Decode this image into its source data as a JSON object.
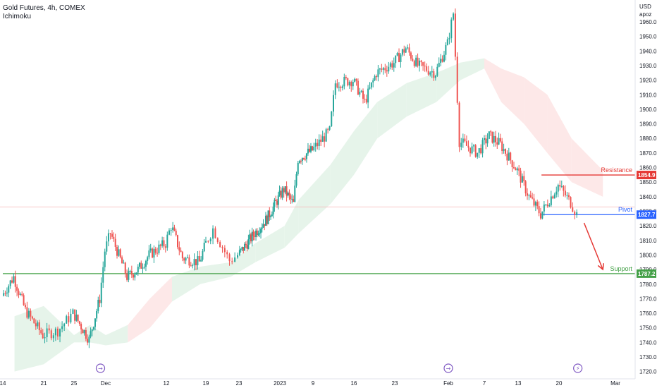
{
  "header": {
    "title": "Gold Futures, 4h, COMEX",
    "indicator": "Ichimoku",
    "currency": "USD",
    "scale_mode": "apoz"
  },
  "colors": {
    "up": "#26a69a",
    "down": "#ef5350",
    "cloud_bull": "#e6f4ea",
    "cloud_bear": "#fde8e8",
    "resistance": "#e53935",
    "pivot": "#2962ff",
    "support": "#43a047",
    "arrow": "#e53935",
    "event": "#7e57c2"
  },
  "annotations": {
    "resistance": {
      "label": "Resistance",
      "value": 1854.9,
      "tag": "1854.9"
    },
    "pivot": {
      "label": "Pivot",
      "value": 1827.7,
      "tag": "1827.7"
    },
    "support": {
      "label": "Support",
      "value": 1787.2,
      "tag": "1787.2"
    }
  },
  "chart_data": {
    "type": "candlestick",
    "title": "Gold Futures, 4h, COMEX",
    "ylim": [
      1715,
      1975
    ],
    "y_ticks": [
      1720,
      1730,
      1740,
      1750,
      1760,
      1770,
      1780,
      1790,
      1800,
      1810,
      1820,
      1830,
      1840,
      1850,
      1860,
      1870,
      1880,
      1890,
      1900,
      1910,
      1920,
      1930,
      1940,
      1950,
      1960
    ],
    "x_tick_labels": [
      "14",
      "21",
      "25",
      "Dec",
      "12",
      "19",
      "23",
      "2023",
      "9",
      "16",
      "23",
      "Feb",
      "7",
      "13",
      "20",
      "Mar"
    ],
    "anchors": [
      {
        "date": "2022-11-14",
        "close": 1772
      },
      {
        "date": "2022-11-16",
        "close": 1785
      },
      {
        "date": "2022-11-18",
        "close": 1762
      },
      {
        "date": "2022-11-21",
        "close": 1745
      },
      {
        "date": "2022-11-23",
        "close": 1748
      },
      {
        "date": "2022-11-25",
        "close": 1760
      },
      {
        "date": "2022-11-28",
        "close": 1742
      },
      {
        "date": "2022-11-30",
        "close": 1770
      },
      {
        "date": "2022-12-01",
        "close": 1803
      },
      {
        "date": "2022-12-02",
        "close": 1815
      },
      {
        "date": "2022-12-05",
        "close": 1785
      },
      {
        "date": "2022-12-07",
        "close": 1790
      },
      {
        "date": "2022-12-09",
        "close": 1800
      },
      {
        "date": "2022-12-12",
        "close": 1808
      },
      {
        "date": "2022-12-13",
        "close": 1820
      },
      {
        "date": "2022-12-15",
        "close": 1798
      },
      {
        "date": "2022-12-18",
        "close": 1795
      },
      {
        "date": "2022-12-20",
        "close": 1818
      },
      {
        "date": "2022-12-22",
        "close": 1796
      },
      {
        "date": "2022-12-23",
        "close": 1800
      },
      {
        "date": "2022-12-27",
        "close": 1815
      },
      {
        "date": "2022-12-30",
        "close": 1825
      },
      {
        "date": "2023-01-03",
        "close": 1845
      },
      {
        "date": "2023-01-05",
        "close": 1835
      },
      {
        "date": "2023-01-06",
        "close": 1866
      },
      {
        "date": "2023-01-09",
        "close": 1872
      },
      {
        "date": "2023-01-12",
        "close": 1885
      },
      {
        "date": "2023-01-13",
        "close": 1918
      },
      {
        "date": "2023-01-16",
        "close": 1920
      },
      {
        "date": "2023-01-18",
        "close": 1905
      },
      {
        "date": "2023-01-20",
        "close": 1925
      },
      {
        "date": "2023-01-23",
        "close": 1932
      },
      {
        "date": "2023-01-25",
        "close": 1942
      },
      {
        "date": "2023-01-27",
        "close": 1930
      },
      {
        "date": "2023-01-30",
        "close": 1925
      },
      {
        "date": "2023-02-01",
        "close": 1945
      },
      {
        "date": "2023-02-02",
        "close": 1966
      },
      {
        "date": "2023-02-03",
        "close": 1878
      },
      {
        "date": "2023-02-06",
        "close": 1870
      },
      {
        "date": "2023-02-08",
        "close": 1882
      },
      {
        "date": "2023-02-10",
        "close": 1876
      },
      {
        "date": "2023-02-13",
        "close": 1858
      },
      {
        "date": "2023-02-15",
        "close": 1840
      },
      {
        "date": "2023-02-17",
        "close": 1828
      },
      {
        "date": "2023-02-20",
        "close": 1848
      },
      {
        "date": "2023-02-22",
        "close": 1836
      },
      {
        "date": "2023-02-23",
        "close": 1828
      }
    ],
    "cloud": {
      "upper": [
        {
          "date": "2022-11-16",
          "value": 1758
        },
        {
          "date": "2022-11-21",
          "value": 1765
        },
        {
          "date": "2022-11-25",
          "value": 1745
        },
        {
          "date": "2022-11-28",
          "value": 1752
        },
        {
          "date": "2022-12-01",
          "value": 1745
        },
        {
          "date": "2022-12-05",
          "value": 1752
        },
        {
          "date": "2022-12-09",
          "value": 1770
        },
        {
          "date": "2022-12-13",
          "value": 1785
        },
        {
          "date": "2022-12-18",
          "value": 1792
        },
        {
          "date": "2022-12-22",
          "value": 1795
        },
        {
          "date": "2022-12-27",
          "value": 1808
        },
        {
          "date": "2023-01-03",
          "value": 1820
        },
        {
          "date": "2023-01-06",
          "value": 1838
        },
        {
          "date": "2023-01-12",
          "value": 1862
        },
        {
          "date": "2023-01-16",
          "value": 1885
        },
        {
          "date": "2023-01-20",
          "value": 1905
        },
        {
          "date": "2023-01-25",
          "value": 1918
        },
        {
          "date": "2023-01-30",
          "value": 1925
        },
        {
          "date": "2023-02-03",
          "value": 1932
        },
        {
          "date": "2023-02-07",
          "value": 1935
        },
        {
          "date": "2023-02-10",
          "value": 1928
        },
        {
          "date": "2023-02-14",
          "value": 1922
        },
        {
          "date": "2023-02-18",
          "value": 1910
        },
        {
          "date": "2023-02-22",
          "value": 1880
        },
        {
          "date": "2023-02-27",
          "value": 1858
        }
      ],
      "lower": [
        {
          "date": "2022-11-16",
          "value": 1720
        },
        {
          "date": "2022-11-21",
          "value": 1725
        },
        {
          "date": "2022-11-25",
          "value": 1740
        },
        {
          "date": "2022-11-28",
          "value": 1740
        },
        {
          "date": "2022-12-01",
          "value": 1738
        },
        {
          "date": "2022-12-05",
          "value": 1740
        },
        {
          "date": "2022-12-09",
          "value": 1750
        },
        {
          "date": "2022-12-13",
          "value": 1768
        },
        {
          "date": "2022-12-18",
          "value": 1780
        },
        {
          "date": "2022-12-22",
          "value": 1785
        },
        {
          "date": "2022-12-27",
          "value": 1795
        },
        {
          "date": "2023-01-03",
          "value": 1805
        },
        {
          "date": "2023-01-06",
          "value": 1815
        },
        {
          "date": "2023-01-12",
          "value": 1835
        },
        {
          "date": "2023-01-16",
          "value": 1855
        },
        {
          "date": "2023-01-20",
          "value": 1880
        },
        {
          "date": "2023-01-25",
          "value": 1895
        },
        {
          "date": "2023-01-30",
          "value": 1905
        },
        {
          "date": "2023-02-03",
          "value": 1920
        },
        {
          "date": "2023-02-07",
          "value": 1928
        },
        {
          "date": "2023-02-10",
          "value": 1905
        },
        {
          "date": "2023-02-14",
          "value": 1890
        },
        {
          "date": "2023-02-18",
          "value": 1870
        },
        {
          "date": "2023-02-22",
          "value": 1850
        },
        {
          "date": "2023-02-27",
          "value": 1840
        }
      ]
    },
    "levels": [
      {
        "name": "Resistance",
        "value": 1854.9
      },
      {
        "name": "Pivot",
        "value": 1827.7
      },
      {
        "name": "Support",
        "value": 1787.2
      }
    ],
    "forecast_arrow": {
      "from": {
        "date": "2023-02-24",
        "value": 1822
      },
      "to": {
        "date": "2023-02-27",
        "value": 1790
      }
    },
    "events": [
      {
        "date": "2022-11-30",
        "icon": "event-icon"
      },
      {
        "date": "2023-02-01",
        "icon": "event-icon"
      },
      {
        "date": "2023-02-23",
        "icon": "lightning-icon"
      }
    ]
  }
}
